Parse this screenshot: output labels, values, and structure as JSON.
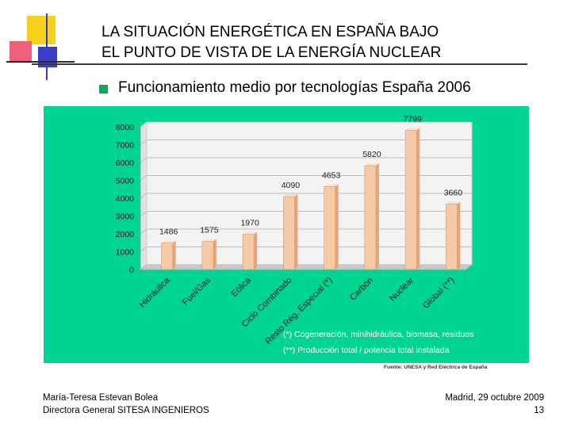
{
  "header": {
    "title_line1": "LA SITUACIÓN ENERGÉTICA EN ESPAÑA BAJO",
    "title_line2": "EL PUNTO DE VISTA DE LA ENERGÍA NUCLEAR"
  },
  "subtitle": "Funcionamiento medio por tecnologías España 2006",
  "colors": {
    "panel": "#00d492",
    "bullet": "#00b050",
    "bar_front": "#f6c9a7",
    "bar_side": "#e6a47a",
    "bar_top": "#fbe2cf"
  },
  "chart_data": {
    "type": "bar",
    "title": "",
    "xlabel": "",
    "ylabel": "",
    "categories": [
      "Hidráulica",
      "Fuel/Gas",
      "Eólica",
      "Ciclo Combinado",
      "Resto Rég. Especial (*)",
      "Carbón",
      "Nuclear",
      "Global (**)"
    ],
    "values": [
      1486,
      1575,
      1970,
      4090,
      4653,
      5820,
      7799,
      3660
    ],
    "value_labels": [
      "1486",
      "1575",
      "1970",
      "4090",
      "4653",
      "5820",
      "7799",
      "3660"
    ],
    "ylim": [
      0,
      8000
    ],
    "yticks": [
      0,
      1000,
      2000,
      3000,
      4000,
      5000,
      6000,
      7000,
      8000
    ],
    "ytick_labels": [
      "0",
      "1000",
      "2000",
      "3000",
      "4000",
      "5000",
      "6000",
      "7000",
      "8000"
    ],
    "grid": true,
    "legend": "none"
  },
  "notes": {
    "note1": "(*) Cogeneración, minihidráulica, biomasa, residuos",
    "note2": "(**) Producción total / potencia total instalada",
    "source": "Fuente: UNESA y Red Eléctrica de España"
  },
  "footer": {
    "author": "María-Teresa Estevan Bolea",
    "role": "Directora General SITESA INGENIEROS",
    "place_date": "Madrid, 29 octubre 2009",
    "page": "13"
  }
}
